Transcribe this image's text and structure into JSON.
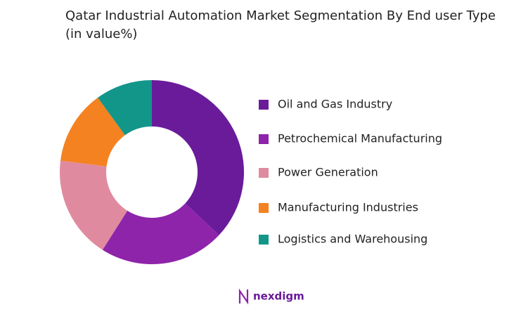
{
  "chart_data": {
    "type": "donut",
    "title": "Qatar Industrial Automation Market Segmentation By End user Type (in value%)",
    "categories": [
      "Oil and Gas Industry",
      "Petrochemical Manufacturing",
      "Power Generation",
      "Manufacturing Industries",
      "Logistics and Warehousing"
    ],
    "values": [
      37,
      22,
      18,
      13,
      10
    ],
    "colors": [
      "#6a1b9a",
      "#8e24aa",
      "#e08aa0",
      "#f58220",
      "#13968a"
    ],
    "legend": "right"
  },
  "logo": "nexdigm"
}
